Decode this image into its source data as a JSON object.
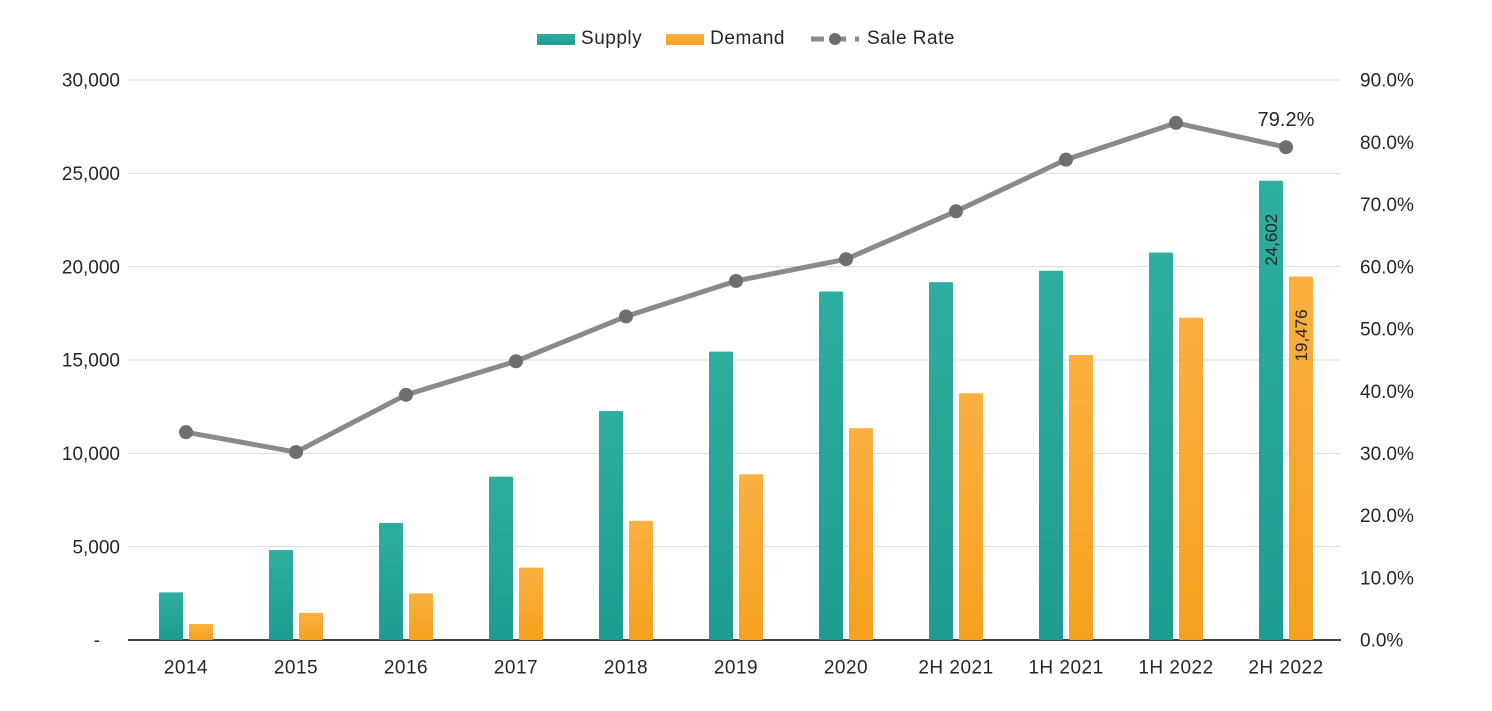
{
  "chart_data": {
    "type": "combo-bar-line",
    "title": "",
    "categories": [
      "2014",
      "2015",
      "2016",
      "2017",
      "2018",
      "2019",
      "2020",
      "2H 2021",
      "1H 2021",
      "1H 2022",
      "2H 2022"
    ],
    "series": [
      {
        "name": "Supply",
        "type": "bar",
        "axis": "left",
        "color": "#1E9C8F",
        "color_light": "#2FAD9E",
        "values": [
          2550,
          4820,
          6270,
          8750,
          12270,
          15450,
          18670,
          19170,
          19780,
          20760,
          24602
        ]
      },
      {
        "name": "Demand",
        "type": "bar",
        "axis": "left",
        "color": "#F5A11F",
        "color_light": "#FBB041",
        "values": [
          860,
          1450,
          2500,
          3880,
          6380,
          8880,
          11350,
          13220,
          15270,
          17270,
          19476
        ]
      },
      {
        "name": "Sale Rate",
        "type": "line",
        "axis": "right",
        "color": "#8A8A8A",
        "marker_color": "#6E6E6E",
        "values": [
          33.4,
          30.2,
          39.4,
          44.8,
          52.0,
          57.7,
          61.2,
          68.9,
          77.2,
          83.1,
          79.2
        ]
      }
    ],
    "left_axis": {
      "min": 0,
      "max": 30000,
      "step": 5000,
      "tick_labels": [
        "-",
        "5,000",
        "10,000",
        "15,000",
        "20,000",
        "25,000",
        "30,000"
      ]
    },
    "right_axis": {
      "min": 0,
      "max": 90,
      "step": 10,
      "tick_labels": [
        "0.0%",
        "10.0%",
        "20.0%",
        "30.0%",
        "40.0%",
        "50.0%",
        "60.0%",
        "70.0%",
        "80.0%",
        "90.0%"
      ]
    },
    "legend": {
      "position": "top",
      "items": [
        "Supply",
        "Demand",
        "Sale Rate"
      ]
    },
    "annotations": {
      "line_point_label": {
        "text": "79.2%",
        "series": "Sale Rate",
        "category": "2H 2022"
      },
      "bar_labels": [
        {
          "text": "24,602",
          "series": "Supply",
          "category": "2H 2022",
          "color": "#FFFFFF"
        },
        {
          "text": "19,476",
          "series": "Demand",
          "category": "2H 2022",
          "color": "#FFFFFF"
        }
      ]
    },
    "grid": {
      "show": true,
      "color": "#D9D9D9"
    },
    "axis_line_color": "#262626",
    "text_color": "#262626",
    "background": "#FFFFFF"
  }
}
